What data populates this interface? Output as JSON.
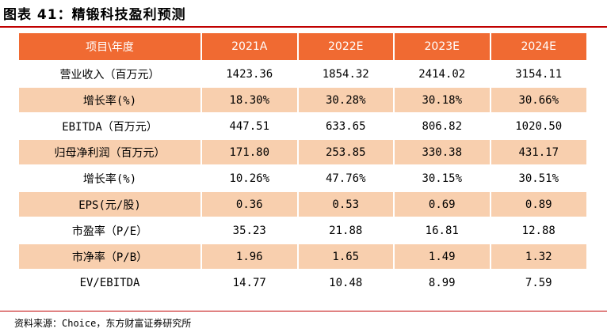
{
  "title": "图表 41：精锻科技盈利预测",
  "table": {
    "header": [
      "项目\\年度",
      "2021A",
      "2022E",
      "2023E",
      "2024E"
    ],
    "rows": [
      {
        "label": "营业收入（百万元）",
        "values": [
          "1423.36",
          "1854.32",
          "2414.02",
          "3154.11"
        ]
      },
      {
        "label": "增长率(%)",
        "values": [
          "18.30%",
          "30.28%",
          "30.18%",
          "30.66%"
        ]
      },
      {
        "label": "EBITDA（百万元）",
        "values": [
          "447.51",
          "633.65",
          "806.82",
          "1020.50"
        ]
      },
      {
        "label": "归母净利润（百万元）",
        "values": [
          "171.80",
          "253.85",
          "330.38",
          "431.17"
        ]
      },
      {
        "label": "增长率(%)",
        "values": [
          "10.26%",
          "47.76%",
          "30.15%",
          "30.51%"
        ]
      },
      {
        "label": "EPS(元/股)",
        "values": [
          "0.36",
          "0.53",
          "0.69",
          "0.89"
        ]
      },
      {
        "label": "市盈率（P/E）",
        "values": [
          "35.23",
          "21.88",
          "16.81",
          "12.88"
        ]
      },
      {
        "label": "市净率（P/B）",
        "values": [
          "1.96",
          "1.65",
          "1.49",
          "1.32"
        ]
      },
      {
        "label": "EV/EBITDA",
        "values": [
          "14.77",
          "10.48",
          "8.99",
          "7.59"
        ]
      }
    ]
  },
  "source": "资料来源：Choice，东方财富证券研究所",
  "colors": {
    "header_bg": "#f06a32",
    "alt_row_bg": "#f8cfae",
    "rule": "#c00000"
  }
}
